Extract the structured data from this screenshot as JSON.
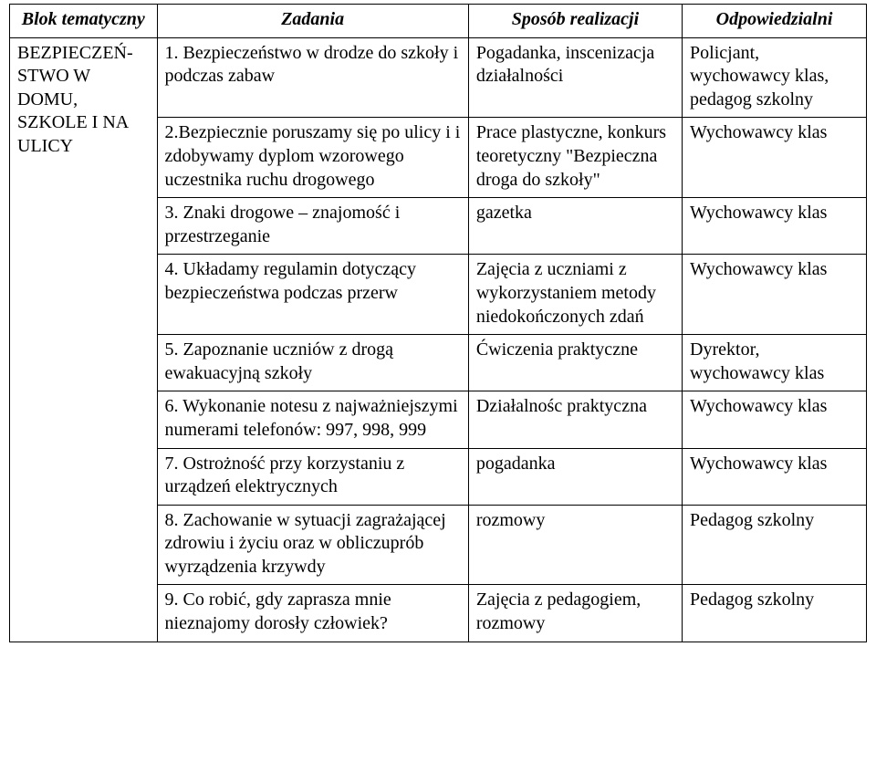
{
  "headers": {
    "col1": "Blok tematyczny",
    "col2": "Zadania",
    "col3": "Sposób realizacji",
    "col4": "Odpowiedzialni"
  },
  "block_label_line1": "BEZPIECZEŃ-",
  "block_label_line2": "STWO W",
  "block_label_line3": "DOMU,",
  "block_label_line4": "SZKOLE I NA",
  "block_label_line5": "ULICY",
  "rows": [
    {
      "task": "1. Bezpieczeństwo w drodze do szkoły i podczas zabaw",
      "method": "Pogadanka, inscenizacja działalności",
      "resp": "Policjant, wychowawcy klas, pedagog szkolny"
    },
    {
      "task": "2.Bezpiecznie poruszamy się po ulicy i i zdobywamy dyplom wzorowego uczestnika ruchu drogowego",
      "method": "Prace plastyczne, konkurs teoretyczny \"Bezpieczna droga do szkoły\"",
      "resp": "Wychowawcy klas"
    },
    {
      "task": "3. Znaki drogowe – znajomość i przestrzeganie",
      "method": "gazetka",
      "resp": "Wychowawcy klas"
    },
    {
      "task": "4. Układamy regulamin dotyczący bezpieczeństwa podczas przerw",
      "method": "Zajęcia z uczniami z wykorzystaniem metody niedokończonych zdań",
      "resp": "Wychowawcy klas"
    },
    {
      "task": "5. Zapoznanie uczniów z drogą ewakuacyjną szkoły",
      "method": "Ćwiczenia praktyczne",
      "resp": "Dyrektor, wychowawcy klas"
    },
    {
      "task": "6. Wykonanie notesu z najważniejszymi numerami telefonów: 997, 998, 999",
      "method": "Działalnośc praktyczna",
      "resp": "Wychowawcy klas"
    },
    {
      "task": "7. Ostrożność przy korzystaniu z urządzeń elektrycznych",
      "method": "pogadanka",
      "resp": "Wychowawcy klas"
    },
    {
      "task": "8. Zachowanie w sytuacji zagrażającej zdrowiu i życiu oraz w obliczuprób wyrządzenia krzywdy",
      "method": "rozmowy",
      "resp": "Pedagog szkolny"
    },
    {
      "task": "9. Co robić, gdy zaprasza mnie nieznajomy dorosły człowiek?",
      "method": "Zajęcia z pedagogiem, rozmowy",
      "resp": "Pedagog szkolny"
    }
  ]
}
